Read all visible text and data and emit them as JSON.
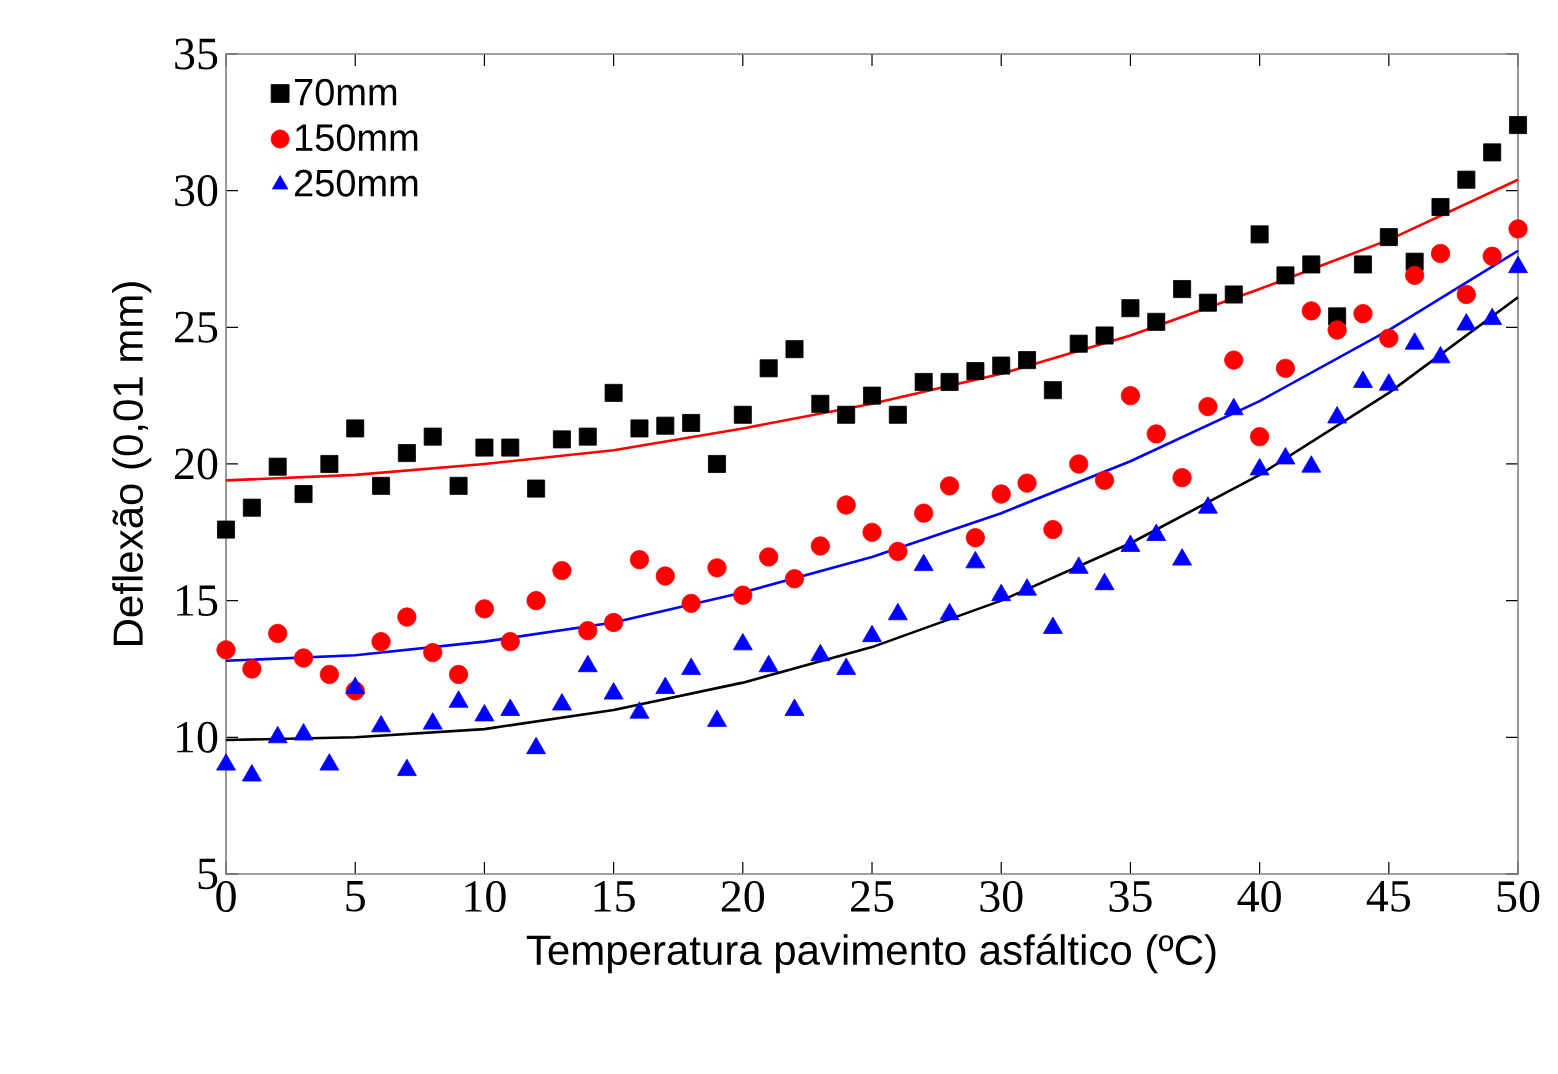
{
  "chart_data": {
    "type": "scatter",
    "xlabel": "Temperatura pavimento asfáltico (ºC)",
    "ylabel": "Deflexão (0,01 mm)",
    "xlim": [
      0,
      50
    ],
    "ylim": [
      5,
      35
    ],
    "xticks": [
      0,
      5,
      10,
      15,
      20,
      25,
      30,
      35,
      40,
      45,
      50
    ],
    "yticks": [
      5,
      10,
      15,
      20,
      25,
      30,
      35
    ],
    "grid": false,
    "legend": "top left",
    "series": [
      {
        "name": "70mm",
        "color": "#000000",
        "marker": "square",
        "x": [
          0,
          1,
          2,
          3,
          4,
          5,
          6,
          7,
          8,
          9,
          10,
          11,
          12,
          13,
          14,
          15,
          16,
          17,
          18,
          19,
          20,
          21,
          22,
          23,
          24,
          25,
          26,
          27,
          28,
          29,
          30,
          31,
          32,
          33,
          34,
          35,
          36,
          37,
          38,
          39,
          40,
          41,
          42,
          43,
          44,
          45,
          46,
          47,
          48,
          49,
          50
        ],
        "values": [
          17.6,
          18.4,
          19.9,
          18.9,
          20.0,
          21.3,
          19.2,
          20.4,
          21.0,
          19.2,
          20.6,
          20.6,
          19.1,
          20.9,
          21.0,
          22.6,
          21.3,
          21.4,
          21.5,
          20.0,
          21.8,
          23.5,
          24.2,
          22.2,
          21.8,
          22.5,
          21.8,
          23.0,
          23.0,
          23.4,
          23.6,
          23.8,
          22.7,
          24.4,
          24.7,
          25.7,
          25.2,
          26.4,
          25.9,
          26.2,
          28.4,
          26.9,
          27.3,
          25.4,
          27.3,
          28.3,
          27.4,
          29.4,
          30.4,
          31.4,
          32.4
        ]
      },
      {
        "name": "150mm",
        "color": "#ff0000",
        "marker": "circle",
        "x": [
          0,
          1,
          2,
          3,
          4,
          5,
          6,
          7,
          8,
          9,
          10,
          11,
          12,
          13,
          14,
          15,
          16,
          17,
          18,
          19,
          20,
          21,
          22,
          23,
          24,
          25,
          26,
          27,
          28,
          29,
          30,
          31,
          32,
          33,
          34,
          35,
          36,
          37,
          38,
          39,
          40,
          41,
          42,
          43,
          44,
          45,
          46,
          47,
          48,
          49,
          50
        ],
        "values": [
          13.2,
          12.5,
          13.8,
          12.9,
          12.3,
          11.7,
          13.5,
          14.4,
          13.1,
          12.3,
          14.7,
          13.5,
          15.0,
          16.1,
          13.9,
          14.2,
          16.5,
          15.9,
          14.9,
          16.2,
          15.2,
          16.6,
          15.8,
          17.0,
          18.5,
          17.5,
          16.8,
          18.2,
          19.2,
          17.3,
          18.9,
          19.3,
          17.6,
          20.0,
          19.4,
          22.5,
          21.1,
          19.5,
          22.1,
          23.8,
          21.0,
          23.5,
          25.6,
          24.9,
          25.5,
          24.6,
          26.9,
          27.7,
          26.2,
          27.6,
          28.6
        ]
      },
      {
        "name": "250mm",
        "color": "#0000ff",
        "marker": "triangle",
        "x": [
          0,
          1,
          2,
          3,
          4,
          5,
          6,
          7,
          8,
          9,
          10,
          11,
          12,
          13,
          14,
          15,
          16,
          17,
          18,
          19,
          20,
          21,
          22,
          23,
          24,
          25,
          26,
          27,
          28,
          29,
          30,
          31,
          32,
          33,
          34,
          35,
          36,
          37,
          38,
          39,
          40,
          41,
          42,
          43,
          44,
          45,
          46,
          47,
          48,
          49,
          50
        ],
        "values": [
          9.0,
          8.6,
          10.0,
          10.1,
          9.0,
          11.8,
          10.4,
          8.8,
          10.5,
          11.3,
          10.8,
          11.0,
          9.6,
          11.2,
          12.6,
          11.6,
          10.9,
          11.8,
          12.5,
          10.6,
          13.4,
          12.6,
          11.0,
          13.0,
          12.5,
          13.7,
          14.5,
          16.3,
          14.5,
          16.4,
          15.2,
          15.4,
          14.0,
          16.2,
          15.6,
          17.0,
          17.4,
          16.5,
          18.4,
          22.0,
          19.8,
          20.2,
          19.9,
          21.7,
          23.0,
          22.9,
          24.4,
          23.9,
          25.1,
          25.3,
          27.2
        ]
      },
      {
        "type": "line",
        "color": "#ff0000",
        "marker": "none",
        "x": [
          0,
          5,
          10,
          15,
          20,
          25,
          30,
          35,
          40,
          45,
          50
        ],
        "values": [
          19.4,
          19.6,
          20.0,
          20.5,
          21.3,
          22.2,
          23.3,
          24.7,
          26.4,
          28.2,
          30.4
        ]
      },
      {
        "type": "line",
        "color": "#0000ff",
        "marker": "none",
        "x": [
          0,
          5,
          10,
          15,
          20,
          25,
          30,
          35,
          40,
          45,
          50
        ],
        "values": [
          12.8,
          13.0,
          13.5,
          14.2,
          15.3,
          16.6,
          18.2,
          20.1,
          22.3,
          24.9,
          27.8
        ]
      },
      {
        "type": "line",
        "color": "#000000",
        "marker": "none",
        "x": [
          0,
          5,
          10,
          15,
          20,
          25,
          30,
          35,
          40,
          45,
          50
        ],
        "values": [
          9.9,
          10.0,
          10.3,
          11.0,
          12.0,
          13.3,
          15.0,
          17.1,
          19.6,
          22.6,
          26.1
        ]
      }
    ]
  }
}
